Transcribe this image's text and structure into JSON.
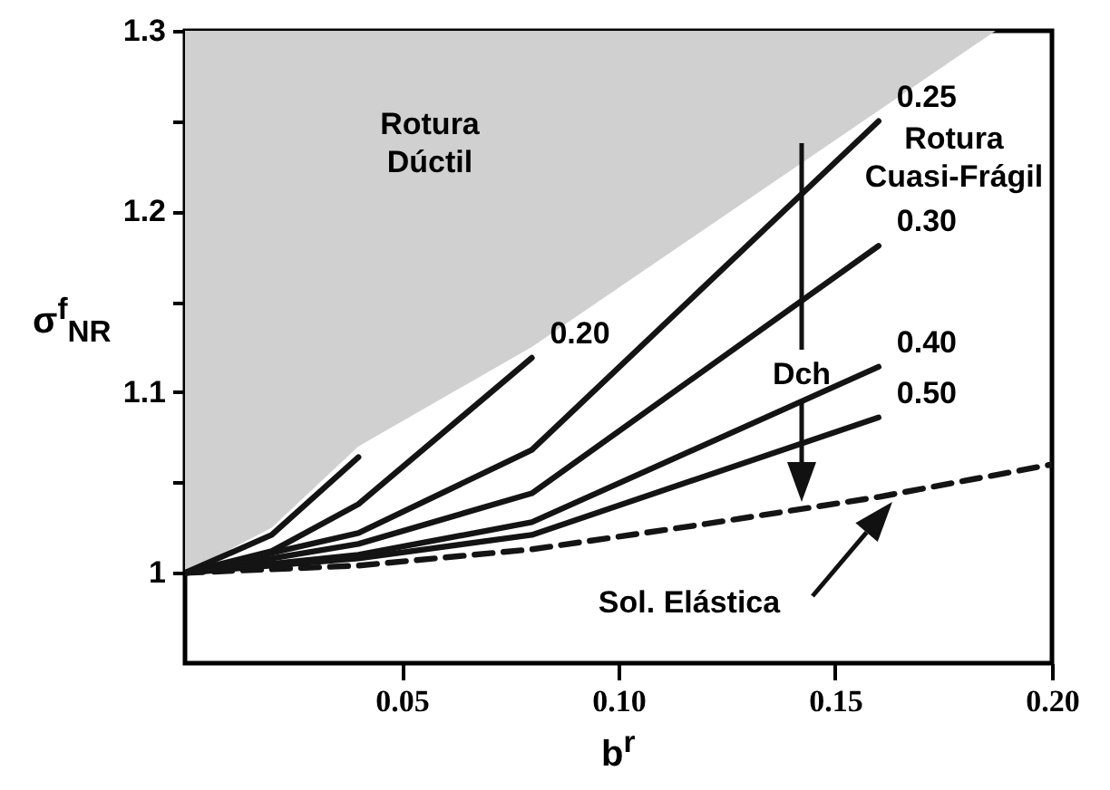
{
  "chart_data": {
    "type": "line",
    "xlabel": "b$^{r}$",
    "ylabel": "σ$^{f}$$_{NR}$",
    "xlim": [
      0,
      0.2
    ],
    "ylim": [
      0.95,
      1.3
    ],
    "xticks": [
      0.05,
      {
        "value": 0.1,
        "label": "0.10"
      },
      0.15,
      {
        "value": 0.2,
        "label": "0.20"
      }
    ],
    "yticks": [
      1,
      {
        "value": 1.05,
        "label": null
      },
      1.1,
      {
        "value": 1.15,
        "label": null
      },
      1.2,
      {
        "value": 1.25,
        "label": null
      },
      1.3
    ],
    "grid": false,
    "marker": "none",
    "series": [
      {
        "type": "area",
        "color": "#d0d0d0",
        "x": [
          0,
          0,
          0.02,
          0.04,
          0.08,
          0.187
        ],
        "values": [
          1.3,
          1,
          1.025,
          1.07,
          1.125,
          1.3
        ]
      },
      {
        "color": "#141414",
        "x": [
          0,
          0.02,
          0.04
        ],
        "values": [
          1,
          1.021,
          1.064
        ]
      },
      {
        "name": "0.20",
        "color": "#141414",
        "x": [
          0,
          0.02,
          0.04,
          0.08
        ],
        "values": [
          1,
          1.012,
          1.038,
          1.119
        ]
      },
      {
        "name": "0.25",
        "color": "#141414",
        "x": [
          0,
          0.04,
          0.08,
          0.16
        ],
        "values": [
          1,
          1.022,
          1.068,
          1.25
        ]
      },
      {
        "name": "0.30",
        "color": "#141414",
        "x": [
          0,
          0.04,
          0.08,
          0.16
        ],
        "values": [
          1,
          1.016,
          1.044,
          1.181
        ]
      },
      {
        "name": "0.40",
        "color": "#141414",
        "x": [
          0,
          0.04,
          0.08,
          0.16
        ],
        "values": [
          1,
          1.01,
          1.028,
          1.114
        ]
      },
      {
        "name": "0.50",
        "color": "#141414",
        "x": [
          0,
          0.04,
          0.08,
          0.16
        ],
        "values": [
          1,
          1.008,
          1.021,
          1.086
        ]
      },
      {
        "color": "#141414",
        "line_style": "dashed",
        "x": [
          0,
          0.04,
          0.08,
          0.12,
          0.16,
          0.2
        ],
        "values": [
          1,
          1.004,
          1.013,
          1.027,
          1.042,
          1.06
        ]
      }
    ],
    "annotations": [
      "Rotura\nDúctil",
      "Rotura\nCuasi-Frágil",
      "Dch",
      "Sol. Elástica"
    ]
  }
}
